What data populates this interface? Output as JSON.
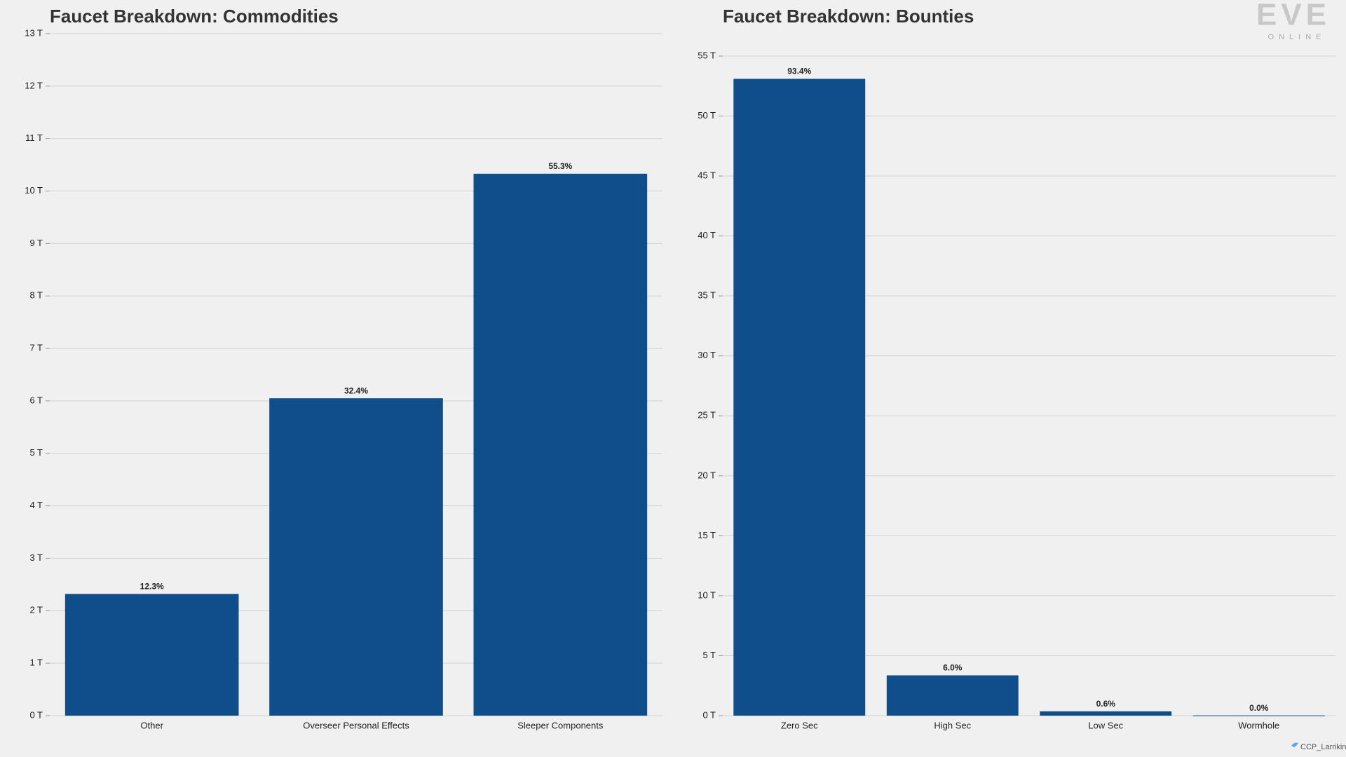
{
  "chart_data": [
    {
      "type": "bar",
      "title": "Faucet Breakdown: Commodities",
      "categories": [
        "Other",
        "Overseer Personal Effects",
        "Sleeper Components"
      ],
      "values": [
        2.32,
        6.05,
        10.33
      ],
      "share_labels": [
        "12.3%",
        "32.4%",
        "55.3%"
      ],
      "color": "#104e8b",
      "ylim": [
        0,
        13
      ],
      "yticks": [
        {
          "value": 0,
          "label": "0 T"
        },
        {
          "value": 1,
          "label": "1 T"
        },
        {
          "value": 2,
          "label": "2 T"
        },
        {
          "value": 3,
          "label": "3 T"
        },
        {
          "value": 4,
          "label": "4 T"
        },
        {
          "value": 5,
          "label": "5 T"
        },
        {
          "value": 6,
          "label": "6 T"
        },
        {
          "value": 7,
          "label": "7 T"
        },
        {
          "value": 8,
          "label": "8 T"
        },
        {
          "value": 9,
          "label": "9 T"
        },
        {
          "value": 10,
          "label": "10 T"
        },
        {
          "value": 11,
          "label": "11 T"
        },
        {
          "value": 12,
          "label": "12 T"
        },
        {
          "value": 13,
          "label": "13 T"
        }
      ],
      "grid": true
    },
    {
      "type": "bar",
      "title": "Faucet Breakdown: Bounties",
      "categories": [
        "Zero Sec",
        "High Sec",
        "Low Sec",
        "Wormhole"
      ],
      "values": [
        53.1,
        3.36,
        0.36,
        0.02
      ],
      "share_labels": [
        "93.4%",
        "6.0%",
        "0.6%",
        "0.0%"
      ],
      "color": "#104e8b",
      "ylim": [
        0,
        55
      ],
      "yticks": [
        {
          "value": 0,
          "label": "0 T"
        },
        {
          "value": 5,
          "label": "5 T"
        },
        {
          "value": 10,
          "label": "10 T"
        },
        {
          "value": 15,
          "label": "15 T"
        },
        {
          "value": 20,
          "label": "20 T"
        },
        {
          "value": 25,
          "label": "25 T"
        },
        {
          "value": 30,
          "label": "30 T"
        },
        {
          "value": 35,
          "label": "35 T"
        },
        {
          "value": 40,
          "label": "40 T"
        },
        {
          "value": 45,
          "label": "45 T"
        },
        {
          "value": 50,
          "label": "50 T"
        },
        {
          "value": 55,
          "label": "55 T"
        }
      ],
      "grid": true
    }
  ],
  "logo": {
    "text": "EVE",
    "subtext": "ONLINE"
  },
  "credit": "CCP_Larrikin"
}
